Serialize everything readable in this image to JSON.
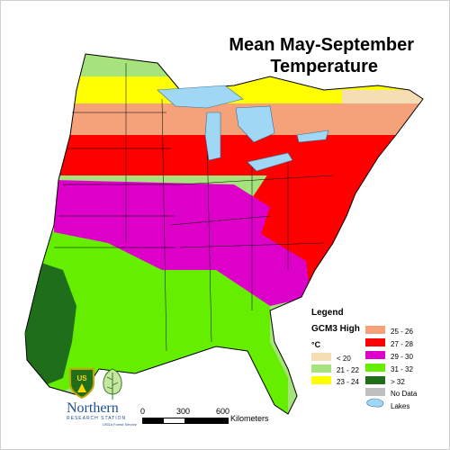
{
  "title": {
    "line1": "Mean May-September",
    "line2": "Temperature"
  },
  "legend": {
    "heading": "Legend",
    "scenario": "GCM3 High",
    "unit": "°C",
    "items": [
      {
        "label": "< 20",
        "color": "#f5deb3"
      },
      {
        "label": "21 - 22",
        "color": "#a6e37c"
      },
      {
        "label": "23 - 24",
        "color": "#ffff00"
      },
      {
        "label": "25 - 26",
        "color": "#f5a27a"
      },
      {
        "label": "27 - 28",
        "color": "#ff0000"
      },
      {
        "label": "29 - 30",
        "color": "#dc00c8"
      },
      {
        "label": "31 - 32",
        "color": "#66ee00"
      },
      {
        "label": "> 32",
        "color": "#1f6e1a"
      },
      {
        "label": "No Data",
        "color": "#bfbfbf"
      },
      {
        "label": "Lakes",
        "color": "#9fd7f5"
      }
    ]
  },
  "scale": {
    "ticks": [
      "0",
      "300",
      "600"
    ],
    "unit": "Kilometers"
  },
  "logo": {
    "name": "Northern",
    "subtitle": "RESEARCH STATION",
    "agency": "USDA Forest Service",
    "shield_text": "US"
  }
}
